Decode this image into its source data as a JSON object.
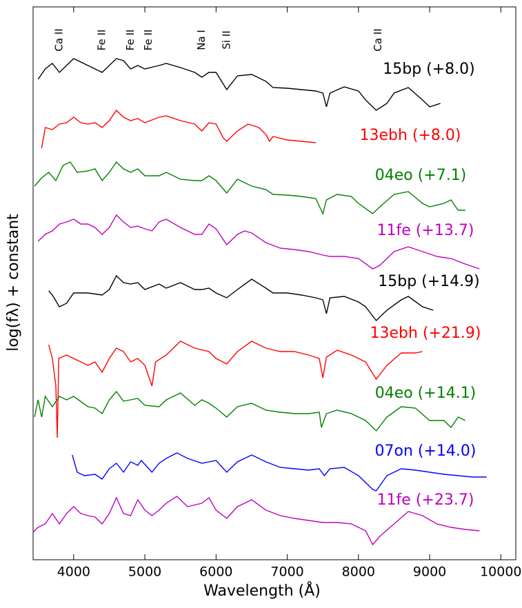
{
  "chart_data": {
    "type": "line",
    "xlabel": "Wavelength (Å)",
    "ylabel": "log(fλ) + constant",
    "xlim": [
      3430,
      10210
    ],
    "ylim": [
      0,
      802
    ],
    "xticks": [
      4000,
      5000,
      6000,
      7000,
      8000,
      9000,
      10000
    ],
    "annotations": [
      {
        "text": "Ca II",
        "x": 3800
      },
      {
        "text": "Fe II",
        "x": 4400
      },
      {
        "text": "Fe II",
        "x": 4800
      },
      {
        "text": "Fe II",
        "x": 5050
      },
      {
        "text": "Na I",
        "x": 5800
      },
      {
        "text": "Si II",
        "x": 6150
      },
      {
        "text": "Ca II",
        "x": 8280
      }
    ],
    "series": [
      {
        "name": "15bp (+8.0)",
        "color": "#000000",
        "x": [
          3500,
          3600,
          3700,
          3800,
          3900,
          4000,
          4200,
          4400,
          4600,
          4700,
          4800,
          4900,
          5000,
          5200,
          5300,
          5500,
          5700,
          5800,
          5900,
          6000,
          6150,
          6300,
          6500,
          6700,
          6800,
          7000,
          7200,
          7400,
          7500,
          7550,
          7600,
          7800,
          8000,
          8100,
          8250,
          8400,
          8500,
          8700,
          8900,
          9000,
          9150
        ],
        "values": [
          697,
          712,
          720,
          707,
          717,
          727,
          717,
          707,
          727,
          724,
          712,
          717,
          712,
          717,
          720,
          714,
          707,
          700,
          707,
          707,
          682,
          702,
          704,
          694,
          685,
          684,
          682,
          680,
          677,
          657,
          677,
          686,
          680,
          667,
          652,
          662,
          677,
          685,
          667,
          657,
          662
        ]
      },
      {
        "name": "13ebh (+8.0)",
        "color": "#ff0000",
        "x": [
          3550,
          3600,
          3700,
          3800,
          3900,
          4000,
          4100,
          4200,
          4300,
          4400,
          4500,
          4600,
          4700,
          4800,
          4900,
          5000,
          5200,
          5300,
          5500,
          5700,
          5800,
          5900,
          6000,
          6100,
          6150,
          6300,
          6450,
          6600,
          6700,
          6750,
          6800,
          7000,
          7200,
          7400
        ],
        "values": [
          597,
          627,
          624,
          632,
          634,
          642,
          634,
          632,
          634,
          627,
          637,
          652,
          642,
          637,
          640,
          634,
          642,
          644,
          637,
          632,
          622,
          634,
          632,
          612,
          607,
          622,
          632,
          627,
          617,
          607,
          614,
          609,
          607,
          605
        ]
      },
      {
        "name": "04eo (+7.1)",
        "color": "#008000",
        "x": [
          3450,
          3550,
          3650,
          3750,
          3850,
          3950,
          4050,
          4200,
          4300,
          4400,
          4500,
          4600,
          4700,
          4800,
          4900,
          5000,
          5200,
          5300,
          5500,
          5700,
          5800,
          5900,
          6000,
          6150,
          6300,
          6500,
          6700,
          6800,
          7000,
          7200,
          7400,
          7500,
          7550,
          7700,
          7900,
          8000,
          8200,
          8300,
          8500,
          8700,
          8900,
          9000,
          9200,
          9300,
          9400,
          9500
        ],
        "values": [
          542,
          554,
          562,
          550,
          572,
          577,
          562,
          564,
          567,
          550,
          562,
          577,
          567,
          562,
          567,
          557,
          557,
          562,
          552,
          550,
          550,
          557,
          550,
          532,
          552,
          542,
          537,
          530,
          529,
          527,
          524,
          502,
          522,
          530,
          527,
          517,
          502,
          512,
          530,
          534,
          517,
          512,
          517,
          522,
          507,
          507
        ]
      },
      {
        "name": "11fe (+13.7)",
        "color": "#bf00bf",
        "x": [
          3500,
          3600,
          3700,
          3800,
          3900,
          4000,
          4100,
          4200,
          4300,
          4400,
          4500,
          4600,
          4700,
          4800,
          4900,
          5000,
          5100,
          5200,
          5300,
          5500,
          5700,
          5800,
          5900,
          6000,
          6150,
          6300,
          6400,
          6500,
          6700,
          6900,
          7100,
          7300,
          7500,
          7600,
          7800,
          8000,
          8200,
          8300,
          8500,
          8700,
          8900,
          9100,
          9300,
          9500,
          9700
        ],
        "values": [
          462,
          472,
          477,
          487,
          490,
          494,
          487,
          487,
          482,
          472,
          482,
          500,
          490,
          482,
          484,
          480,
          477,
          490,
          494,
          482,
          472,
          472,
          487,
          480,
          457,
          472,
          477,
          474,
          460,
          452,
          450,
          447,
          442,
          440,
          440,
          437,
          422,
          427,
          447,
          454,
          447,
          440,
          437,
          429,
          422
        ]
      },
      {
        "name": "15bp (+14.9)",
        "color": "#000000",
        "x": [
          3650,
          3700,
          3800,
          3900,
          4000,
          4200,
          4400,
          4500,
          4600,
          4700,
          4800,
          4900,
          5000,
          5200,
          5300,
          5500,
          5700,
          5800,
          5900,
          6000,
          6150,
          6300,
          6500,
          6700,
          6800,
          7000,
          7200,
          7400,
          7500,
          7550,
          7600,
          7800,
          8000,
          8100,
          8250,
          8400,
          8600,
          8700,
          8900,
          9050
        ],
        "values": [
          390,
          384,
          367,
          372,
          387,
          387,
          384,
          392,
          412,
          402,
          400,
          402,
          392,
          400,
          394,
          402,
          392,
          392,
          394,
          387,
          380,
          392,
          407,
          394,
          387,
          387,
          384,
          380,
          377,
          357,
          380,
          382,
          374,
          367,
          347,
          362,
          377,
          382,
          367,
          362
        ]
      },
      {
        "name": "13ebh (+21.9)",
        "color": "#ff0000",
        "x": [
          3650,
          3700,
          3750,
          3770,
          3790,
          3900,
          4000,
          4200,
          4300,
          4400,
          4500,
          4600,
          4700,
          4800,
          4900,
          5000,
          5100,
          5150,
          5300,
          5500,
          5700,
          5900,
          6000,
          6150,
          6300,
          6500,
          6700,
          6900,
          7100,
          7300,
          7450,
          7500,
          7550,
          7700,
          7900,
          8100,
          8250,
          8400,
          8600,
          8800,
          8900
        ],
        "values": [
          312,
          292,
          252,
          177,
          292,
          297,
          292,
          282,
          287,
          272,
          292,
          307,
          302,
          287,
          292,
          282,
          252,
          287,
          297,
          317,
          307,
          302,
          292,
          284,
          302,
          317,
          307,
          302,
          302,
          297,
          292,
          264,
          294,
          304,
          297,
          287,
          262,
          282,
          300,
          300,
          302
        ]
      },
      {
        "name": "04eo (+14.1)",
        "color": "#008000",
        "x": [
          3450,
          3500,
          3550,
          3600,
          3700,
          3800,
          3900,
          4000,
          4200,
          4300,
          4400,
          4500,
          4600,
          4700,
          4800,
          4900,
          5000,
          5200,
          5300,
          5500,
          5700,
          5800,
          5900,
          6000,
          6150,
          6300,
          6500,
          6700,
          6900,
          7100,
          7300,
          7450,
          7480,
          7550,
          7700,
          7900,
          8100,
          8250,
          8400,
          8600,
          8800,
          9000,
          9200,
          9300,
          9400,
          9500
        ],
        "values": [
          207,
          232,
          207,
          237,
          222,
          237,
          232,
          237,
          222,
          220,
          212,
          232,
          244,
          230,
          232,
          234,
          224,
          222,
          232,
          242,
          224,
          232,
          227,
          220,
          207,
          222,
          227,
          217,
          214,
          212,
          212,
          214,
          192,
          212,
          217,
          212,
          202,
          187,
          207,
          222,
          220,
          202,
          202,
          192,
          207,
          202
        ]
      },
      {
        "name": "07on (+14.0)",
        "color": "#0000ff",
        "x": [
          3980,
          4050,
          4150,
          4300,
          4400,
          4500,
          4600,
          4700,
          4800,
          4900,
          4950,
          5100,
          5200,
          5300,
          5450,
          5600,
          5800,
          6000,
          6150,
          6300,
          6500,
          6700,
          6900,
          7100,
          7300,
          7450,
          7520,
          7600,
          7800,
          8000,
          8100,
          8200,
          8250,
          8400,
          8600,
          8800,
          9000,
          9200,
          9400,
          9600,
          9800
        ],
        "values": [
          152,
          127,
          122,
          124,
          117,
          132,
          140,
          127,
          142,
          137,
          144,
          127,
          140,
          147,
          155,
          147,
          140,
          144,
          127,
          142,
          152,
          142,
          134,
          132,
          130,
          132,
          122,
          132,
          134,
          122,
          112,
          102,
          100,
          122,
          132,
          130,
          127,
          124,
          122,
          120,
          120
        ]
      },
      {
        "name": "11fe (+23.7)",
        "color": "#bf00bf",
        "x": [
          3430,
          3500,
          3600,
          3700,
          3800,
          3900,
          4000,
          4100,
          4200,
          4300,
          4400,
          4500,
          4600,
          4700,
          4800,
          4900,
          5000,
          5100,
          5200,
          5300,
          5450,
          5600,
          5800,
          5900,
          6000,
          6150,
          6300,
          6500,
          6700,
          6900,
          7100,
          7300,
          7500,
          7700,
          7900,
          8100,
          8200,
          8300,
          8500,
          8700,
          8900,
          9100,
          9300,
          9500,
          9700
        ],
        "values": [
          40,
          47,
          52,
          67,
          52,
          67,
          77,
          67,
          64,
          62,
          52,
          67,
          90,
          67,
          64,
          87,
          72,
          64,
          72,
          82,
          92,
          77,
          82,
          90,
          72,
          60,
          77,
          87,
          72,
          64,
          60,
          57,
          54,
          54,
          52,
          42,
          22,
          34,
          52,
          70,
          64,
          52,
          47,
          44,
          42
        ]
      }
    ]
  }
}
